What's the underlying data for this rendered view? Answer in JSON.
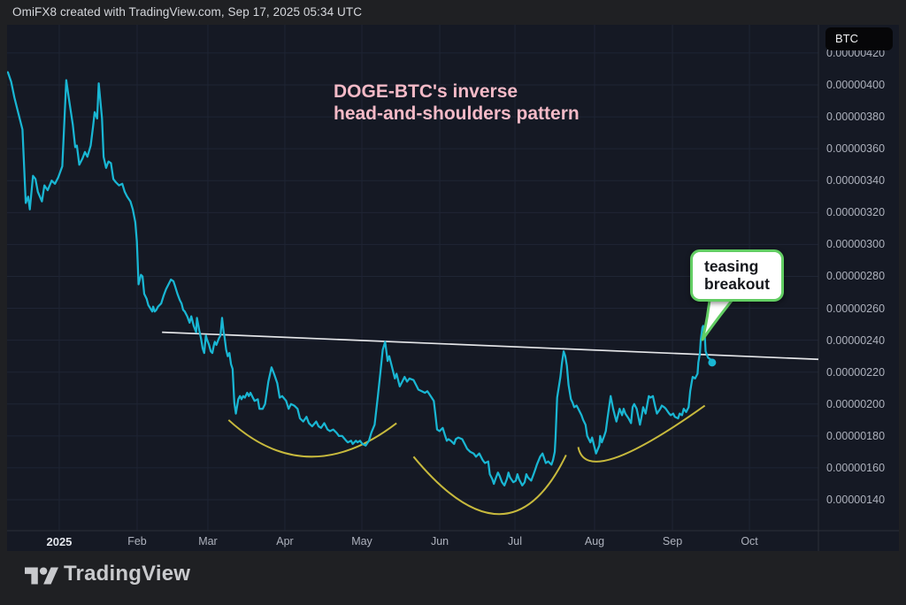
{
  "attribution": "OmiFX8 created with TradingView.com, Sep 17, 2025 05:34 UTC",
  "symbol_badge": "BTC",
  "annotation_title": {
    "line1": "DOGE-BTC's inverse",
    "line2": "head-and-shoulders pattern"
  },
  "callout": {
    "line1": "teasing",
    "line2": "breakout"
  },
  "logo_text": "TradingView",
  "colors": {
    "chart_bg": "#151924",
    "outer_bg": "#1f2023",
    "series": "#19b6d3",
    "arcs": "#c7b93d",
    "trendline": "#e4e5e8",
    "grid": "#1f2534",
    "axis_text": "#aeb2bd",
    "pink_note": "#f4bac7",
    "callout_border": "#62cd63"
  },
  "chart_data": {
    "type": "line",
    "title": "DOGE-BTC's inverse head-and-shoulders pattern",
    "ylabel": "BTC",
    "value_scale_note": "prices stored in 1e-8 BTC units; label format 0.00000XXX",
    "ylim": [
      120.6,
      437.7
    ],
    "grid": true,
    "x_axis": {
      "ticks": [
        {
          "label": "2025",
          "f": 0.0643,
          "year": true
        },
        {
          "label": "Feb",
          "f": 0.1603
        },
        {
          "label": "Mar",
          "f": 0.2475
        },
        {
          "label": "Apr",
          "f": 0.3424
        },
        {
          "label": "May",
          "f": 0.4373
        },
        {
          "label": "Jun",
          "f": 0.5333
        },
        {
          "label": "Jul",
          "f": 0.626
        },
        {
          "label": "Aug",
          "f": 0.7241
        },
        {
          "label": "Sep",
          "f": 0.8201
        },
        {
          "label": "Oct",
          "f": 0.915
        }
      ]
    },
    "y_axis": {
      "ticks": [
        {
          "v": 420,
          "label": "0.00000420"
        },
        {
          "v": 400,
          "label": "0.00000400"
        },
        {
          "v": 380,
          "label": "0.00000380"
        },
        {
          "v": 360,
          "label": "0.00000360"
        },
        {
          "v": 340,
          "label": "0.00000340"
        },
        {
          "v": 320,
          "label": "0.00000320"
        },
        {
          "v": 300,
          "label": "0.00000300"
        },
        {
          "v": 280,
          "label": "0.00000280"
        },
        {
          "v": 260,
          "label": "0.00000260"
        },
        {
          "v": 240,
          "label": "0.00000240"
        },
        {
          "v": 220,
          "label": "0.00000220"
        },
        {
          "v": 200,
          "label": "0.00000200"
        },
        {
          "v": 180,
          "label": "0.00000180"
        },
        {
          "v": 160,
          "label": "0.00000160"
        },
        {
          "v": 140,
          "label": "0.00000140"
        }
      ]
    },
    "series": {
      "name": "DOGE-BTC",
      "points": [
        [
          0.001,
          408
        ],
        [
          0.005,
          402
        ],
        [
          0.009,
          392
        ],
        [
          0.019,
          372
        ],
        [
          0.023,
          326
        ],
        [
          0.026,
          330
        ],
        [
          0.028,
          322
        ],
        [
          0.032,
          343
        ],
        [
          0.035,
          341
        ],
        [
          0.038,
          333
        ],
        [
          0.043,
          327
        ],
        [
          0.046,
          337
        ],
        [
          0.05,
          334
        ],
        [
          0.055,
          340
        ],
        [
          0.059,
          338
        ],
        [
          0.063,
          342
        ],
        [
          0.068,
          349
        ],
        [
          0.073,
          403
        ],
        [
          0.076,
          392
        ],
        [
          0.081,
          375
        ],
        [
          0.084,
          361
        ],
        [
          0.086,
          362
        ],
        [
          0.089,
          350
        ],
        [
          0.093,
          354
        ],
        [
          0.096,
          358
        ],
        [
          0.099,
          355
        ],
        [
          0.103,
          362
        ],
        [
          0.106,
          374
        ],
        [
          0.108,
          383
        ],
        [
          0.111,
          379
        ],
        [
          0.113,
          401
        ],
        [
          0.117,
          379
        ],
        [
          0.119,
          355
        ],
        [
          0.122,
          348
        ],
        [
          0.125,
          352
        ],
        [
          0.128,
          351
        ],
        [
          0.131,
          341
        ],
        [
          0.134,
          339
        ],
        [
          0.138,
          337
        ],
        [
          0.142,
          338
        ],
        [
          0.145,
          333
        ],
        [
          0.148,
          330
        ],
        [
          0.152,
          327
        ],
        [
          0.155,
          322
        ],
        [
          0.158,
          314
        ],
        [
          0.16,
          302
        ],
        [
          0.162,
          275
        ],
        [
          0.165,
          281
        ],
        [
          0.167,
          280
        ],
        [
          0.169,
          269
        ],
        [
          0.172,
          266
        ],
        [
          0.174,
          262
        ],
        [
          0.179,
          258
        ],
        [
          0.18,
          261
        ],
        [
          0.182,
          258
        ],
        [
          0.184,
          259
        ],
        [
          0.186,
          261
        ],
        [
          0.19,
          263
        ],
        [
          0.193,
          268
        ],
        [
          0.196,
          272
        ],
        [
          0.201,
          277
        ],
        [
          0.202,
          278
        ],
        [
          0.205,
          277
        ],
        [
          0.207,
          274
        ],
        [
          0.21,
          269
        ],
        [
          0.213,
          265
        ],
        [
          0.215,
          263
        ],
        [
          0.217,
          259
        ],
        [
          0.219,
          258
        ],
        [
          0.222,
          255
        ],
        [
          0.225,
          251
        ],
        [
          0.227,
          255
        ],
        [
          0.228,
          253
        ],
        [
          0.23,
          249
        ],
        [
          0.233,
          245
        ],
        [
          0.234,
          254
        ],
        [
          0.237,
          246
        ],
        [
          0.239,
          241
        ],
        [
          0.241,
          235
        ],
        [
          0.243,
          232
        ],
        [
          0.245,
          243
        ],
        [
          0.246,
          241
        ],
        [
          0.249,
          237
        ],
        [
          0.251,
          233
        ],
        [
          0.253,
          232
        ],
        [
          0.255,
          237
        ],
        [
          0.256,
          239
        ],
        [
          0.258,
          237
        ],
        [
          0.261,
          241
        ],
        [
          0.263,
          243
        ],
        [
          0.265,
          254
        ],
        [
          0.267,
          245
        ],
        [
          0.268,
          242
        ],
        [
          0.27,
          234
        ],
        [
          0.272,
          230
        ],
        [
          0.274,
          232
        ],
        [
          0.276,
          225
        ],
        [
          0.278,
          222
        ],
        [
          0.28,
          201
        ],
        [
          0.282,
          194
        ],
        [
          0.285,
          203
        ],
        [
          0.287,
          205
        ],
        [
          0.289,
          203
        ],
        [
          0.291,
          205
        ],
        [
          0.293,
          204
        ],
        [
          0.296,
          207
        ],
        [
          0.298,
          205
        ],
        [
          0.3,
          207
        ],
        [
          0.302,
          205
        ],
        [
          0.305,
          202
        ],
        [
          0.309,
          203
        ],
        [
          0.311,
          197
        ],
        [
          0.315,
          197
        ],
        [
          0.318,
          200
        ],
        [
          0.322,
          214
        ],
        [
          0.326,
          223
        ],
        [
          0.329,
          219
        ],
        [
          0.333,
          213
        ],
        [
          0.336,
          204
        ],
        [
          0.339,
          205
        ],
        [
          0.344,
          202
        ],
        [
          0.347,
          197
        ],
        [
          0.35,
          200
        ],
        [
          0.354,
          199
        ],
        [
          0.358,
          197
        ],
        [
          0.361,
          191
        ],
        [
          0.365,
          189
        ],
        [
          0.369,
          192
        ],
        [
          0.372,
          188
        ],
        [
          0.376,
          186
        ],
        [
          0.381,
          189
        ],
        [
          0.384,
          186
        ],
        [
          0.387,
          185
        ],
        [
          0.391,
          188
        ],
        [
          0.395,
          184
        ],
        [
          0.398,
          183
        ],
        [
          0.402,
          184
        ],
        [
          0.406,
          182
        ],
        [
          0.409,
          180
        ],
        [
          0.413,
          180
        ],
        [
          0.418,
          177
        ],
        [
          0.42,
          176
        ],
        [
          0.424,
          177
        ],
        [
          0.426,
          175
        ],
        [
          0.43,
          177
        ],
        [
          0.432,
          176
        ],
        [
          0.435,
          177
        ],
        [
          0.438,
          175
        ],
        [
          0.442,
          174
        ],
        [
          0.446,
          177
        ],
        [
          0.449,
          182
        ],
        [
          0.453,
          187
        ],
        [
          0.457,
          205
        ],
        [
          0.46,
          219
        ],
        [
          0.463,
          234
        ],
        [
          0.466,
          239
        ],
        [
          0.469,
          227
        ],
        [
          0.471,
          230
        ],
        [
          0.474,
          224
        ],
        [
          0.478,
          216
        ],
        [
          0.48,
          219
        ],
        [
          0.484,
          211
        ],
        [
          0.487,
          214
        ],
        [
          0.49,
          217
        ],
        [
          0.493,
          214
        ],
        [
          0.496,
          216
        ],
        [
          0.501,
          215
        ],
        [
          0.504,
          212
        ],
        [
          0.507,
          209
        ],
        [
          0.511,
          208
        ],
        [
          0.515,
          207
        ],
        [
          0.518,
          208
        ],
        [
          0.522,
          205
        ],
        [
          0.526,
          202
        ],
        [
          0.528,
          193
        ],
        [
          0.53,
          184
        ],
        [
          0.533,
          183
        ],
        [
          0.537,
          185
        ],
        [
          0.54,
          180
        ],
        [
          0.542,
          177
        ],
        [
          0.544,
          178
        ],
        [
          0.547,
          177
        ],
        [
          0.551,
          175
        ],
        [
          0.553,
          178
        ],
        [
          0.556,
          179
        ],
        [
          0.561,
          178
        ],
        [
          0.564,
          175
        ],
        [
          0.567,
          172
        ],
        [
          0.571,
          170
        ],
        [
          0.575,
          169
        ],
        [
          0.578,
          167
        ],
        [
          0.582,
          169
        ],
        [
          0.586,
          165
        ],
        [
          0.589,
          163
        ],
        [
          0.593,
          164
        ],
        [
          0.595,
          156
        ],
        [
          0.598,
          153
        ],
        [
          0.6,
          150
        ],
        [
          0.602,
          153
        ],
        [
          0.605,
          157
        ],
        [
          0.607,
          155
        ],
        [
          0.61,
          151
        ],
        [
          0.613,
          149
        ],
        [
          0.616,
          153
        ],
        [
          0.618,
          157
        ],
        [
          0.62,
          154
        ],
        [
          0.624,
          151
        ],
        [
          0.627,
          152
        ],
        [
          0.629,
          156
        ],
        [
          0.631,
          153
        ],
        [
          0.635,
          149
        ],
        [
          0.638,
          151
        ],
        [
          0.64,
          156
        ],
        [
          0.642,
          154
        ],
        [
          0.646,
          152
        ],
        [
          0.649,
          156
        ],
        [
          0.651,
          159
        ],
        [
          0.653,
          162
        ],
        [
          0.657,
          167
        ],
        [
          0.66,
          169
        ],
        [
          0.662,
          166
        ],
        [
          0.664,
          163
        ],
        [
          0.667,
          164
        ],
        [
          0.671,
          162
        ],
        [
          0.673,
          165
        ],
        [
          0.675,
          170
        ],
        [
          0.676,
          179
        ],
        [
          0.678,
          204
        ],
        [
          0.682,
          217
        ],
        [
          0.684,
          226
        ],
        [
          0.686,
          233
        ],
        [
          0.688,
          230
        ],
        [
          0.69,
          224
        ],
        [
          0.692,
          212
        ],
        [
          0.695,
          203
        ],
        [
          0.697,
          201
        ],
        [
          0.699,
          198
        ],
        [
          0.702,
          199
        ],
        [
          0.704,
          197
        ],
        [
          0.708,
          193
        ],
        [
          0.71,
          190
        ],
        [
          0.713,
          187
        ],
        [
          0.715,
          180
        ],
        [
          0.719,
          176
        ],
        [
          0.721,
          179
        ],
        [
          0.724,
          173
        ],
        [
          0.726,
          169
        ],
        [
          0.73,
          174
        ],
        [
          0.731,
          180
        ],
        [
          0.733,
          176
        ],
        [
          0.736,
          180
        ],
        [
          0.738,
          183
        ],
        [
          0.74,
          191
        ],
        [
          0.744,
          205
        ],
        [
          0.747,
          197
        ],
        [
          0.749,
          193
        ],
        [
          0.751,
          189
        ],
        [
          0.755,
          197
        ],
        [
          0.758,
          193
        ],
        [
          0.76,
          197
        ],
        [
          0.762,
          194
        ],
        [
          0.766,
          191
        ],
        [
          0.769,
          188
        ],
        [
          0.771,
          198
        ],
        [
          0.773,
          200
        ],
        [
          0.776,
          197
        ],
        [
          0.78,
          187
        ],
        [
          0.782,
          192
        ],
        [
          0.784,
          198
        ],
        [
          0.787,
          194
        ],
        [
          0.791,
          205
        ],
        [
          0.793,
          204
        ],
        [
          0.796,
          205
        ],
        [
          0.799,
          198
        ],
        [
          0.801,
          194
        ],
        [
          0.805,
          197
        ],
        [
          0.807,
          199
        ],
        [
          0.81,
          198
        ],
        [
          0.812,
          197
        ],
        [
          0.816,
          194
        ],
        [
          0.818,
          193
        ],
        [
          0.821,
          194
        ],
        [
          0.823,
          192
        ],
        [
          0.827,
          191
        ],
        [
          0.829,
          194
        ],
        [
          0.832,
          193
        ],
        [
          0.834,
          197
        ],
        [
          0.837,
          195
        ],
        [
          0.84,
          198
        ],
        [
          0.842,
          208
        ],
        [
          0.844,
          214
        ],
        [
          0.845,
          217
        ],
        [
          0.848,
          216
        ],
        [
          0.851,
          219
        ],
        [
          0.852,
          226
        ],
        [
          0.854,
          232
        ],
        [
          0.855,
          240
        ],
        [
          0.857,
          248
        ],
        [
          0.858,
          249
        ],
        [
          0.86,
          243
        ],
        [
          0.861,
          233
        ],
        [
          0.864,
          229
        ],
        [
          0.867,
          228
        ],
        [
          0.869,
          226
        ]
      ],
      "last_point": [
        0.869,
        226
      ]
    },
    "trendline": {
      "name": "neckline",
      "from": [
        0.191,
        245
      ],
      "to": [
        1.0,
        228
      ]
    },
    "arcs": [
      {
        "name": "left-shoulder",
        "start": [
          0.273,
          190
        ],
        "mid": [
          0.373,
          167
        ],
        "end": [
          0.48,
          188
        ]
      },
      {
        "name": "head",
        "start": [
          0.501,
          167
        ],
        "mid": [
          0.607,
          131
        ],
        "end": [
          0.689,
          168
        ]
      },
      {
        "name": "right-shoulder",
        "start": [
          0.704,
          173
        ],
        "mid": [
          0.748,
          166
        ],
        "end": [
          0.86,
          199
        ]
      }
    ]
  }
}
